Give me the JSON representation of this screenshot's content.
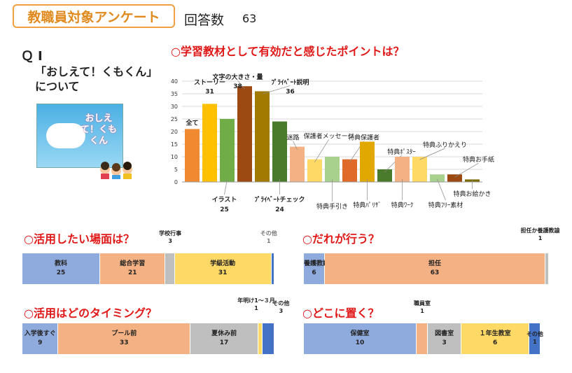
{
  "header": {
    "title": "教職員対象アンケート",
    "responses_label": "回答数",
    "responses_count": "63"
  },
  "question": {
    "number": "ＱⅠ",
    "line1": "「おしえて！くもくん」",
    "line2": "について"
  },
  "book": {
    "title": "おしえて！くもくん"
  },
  "colors": {
    "orange": "#f08a30",
    "yellow": "#ffc000",
    "green": "#70ad47",
    "brown": "#9c4a12",
    "olive": "#a37a00",
    "darkgreen": "#4a7a2c",
    "lightorange": "#f4b183",
    "palegreen": "#a9d18e",
    "blue": "#8faadc",
    "salmon": "#f4b183",
    "gray": "#bfbfbf",
    "paleyellow": "#ffd966",
    "darkblue": "#4472c4"
  },
  "chart_data": [
    {
      "type": "bar",
      "title": "○学習教材として有効だと感じたポイントは？",
      "categories": [
        "全て",
        "ストーリー",
        "イラスト",
        "文字の大きさ・量",
        "ﾌﾟﾗｲﾍﾞｰﾄ説明",
        "ﾌﾟﾗｲﾍﾞｰﾄチェック",
        "迷路",
        "保護者メッセージ",
        "特典手引き",
        "特典保護者",
        "特典ﾊﾟﾘｻﾞ",
        "特典ﾎﾟｽﾀｰ",
        "特典ﾜｰｸ",
        "特典ふりかえり",
        "特典ﾌﾘｰ素材",
        "特典お手紙",
        "特典お絵かき"
      ],
      "values": [
        21,
        31,
        25,
        38,
        36,
        24,
        14,
        9,
        10,
        9,
        16,
        5,
        10,
        10,
        3,
        3,
        1
      ],
      "value_labels": [
        "",
        "31",
        "25",
        "38",
        "36",
        "24",
        "",
        "",
        "",
        "",
        "",
        "",
        "",
        "",
        "",
        "",
        ""
      ],
      "colors": [
        "#f08a30",
        "#ffc000",
        "#70ad47",
        "#9c4a12",
        "#a37a00",
        "#4a7a2c",
        "#f4b183",
        "#ffd966",
        "#a9d18e",
        "#e06a2a",
        "#e0a800",
        "#4a7a2c",
        "#f4b183",
        "#ffd966",
        "#a9d18e",
        "#9c4a12",
        "#7a6a00"
      ],
      "ylim": [
        0,
        40
      ],
      "yticks": [
        "0",
        "5",
        "10",
        "15",
        "20",
        "25",
        "30",
        "35",
        "40"
      ],
      "grid": true
    },
    {
      "type": "bar",
      "title": "○活用したい場面は？",
      "segments": [
        {
          "label": "教科",
          "value": 25,
          "show": "25",
          "color": "#8faadc"
        },
        {
          "label": "総合学習",
          "value": 21,
          "show": "21",
          "color": "#f4b183"
        },
        {
          "label": "学校行事",
          "value": 3,
          "show": "3",
          "color": "#bfbfbf"
        },
        {
          "label": "学級活動",
          "value": 31,
          "show": "31",
          "color": "#ffd966"
        },
        {
          "label": "その他",
          "value": 1,
          "show": "1",
          "color": "#4472c4"
        }
      ]
    },
    {
      "type": "bar",
      "title": "○だれが行う？",
      "segments": [
        {
          "label": "養護教諭",
          "value": 6,
          "show": "6",
          "color": "#8faadc"
        },
        {
          "label": "担任",
          "value": 63,
          "show": "63",
          "color": "#f4b183"
        },
        {
          "label": "担任か養護教諭",
          "value": 1,
          "show": "1",
          "color": "#bfbfbf"
        }
      ]
    },
    {
      "type": "bar",
      "title": "○活用はどのタイミング？",
      "segments": [
        {
          "label": "入学後すぐ",
          "value": 9,
          "show": "9",
          "color": "#8faadc"
        },
        {
          "label": "プール前",
          "value": 33,
          "show": "33",
          "color": "#f4b183"
        },
        {
          "label": "夏休み前",
          "value": 17,
          "show": "17",
          "color": "#bfbfbf"
        },
        {
          "label": "年明け1～３月",
          "value": 1,
          "show": "1",
          "color": "#ffd966"
        },
        {
          "label": "その他",
          "value": 3,
          "show": "3",
          "color": "#4472c4"
        }
      ]
    },
    {
      "type": "bar",
      "title": "○どこに置く？",
      "segments": [
        {
          "label": "保健室",
          "value": 10,
          "show": "10",
          "color": "#8faadc"
        },
        {
          "label": "職員室",
          "value": 1,
          "show": "1",
          "color": "#f4b183"
        },
        {
          "label": "図書室",
          "value": 3,
          "show": "3",
          "color": "#bfbfbf"
        },
        {
          "label": "１年生教室",
          "value": 6,
          "show": "6",
          "color": "#ffd966"
        },
        {
          "label": "その他",
          "value": 1,
          "show": "1",
          "color": "#4472c4"
        }
      ]
    }
  ]
}
